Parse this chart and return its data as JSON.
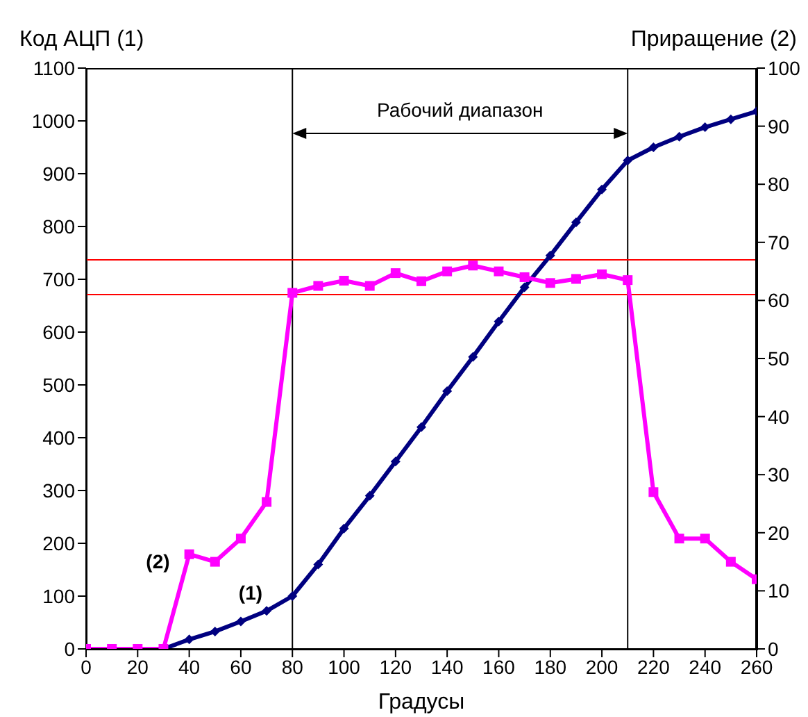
{
  "chart_data": {
    "type": "line",
    "xlabel": "Градусы",
    "ylabel": "Код АЦП (1)",
    "y2label": "Приращение (2)",
    "x": [
      0,
      10,
      20,
      30,
      40,
      50,
      60,
      70,
      80,
      90,
      100,
      110,
      120,
      130,
      140,
      150,
      160,
      170,
      180,
      190,
      200,
      210,
      220,
      230,
      240,
      250,
      260
    ],
    "series": [
      {
        "name": "(1)",
        "color": "#000080",
        "marker": "diamond",
        "values": [
          null,
          null,
          null,
          0,
          18,
          33,
          52,
          72,
          100,
          160,
          228,
          290,
          355,
          420,
          488,
          553,
          620,
          685,
          745,
          808,
          870,
          925,
          950,
          970,
          988,
          1003,
          1018
        ]
      },
      {
        "name": "(2)",
        "color": "#ff00ff",
        "marker": "square",
        "axis": "y2",
        "values": [
          0,
          0,
          0,
          0,
          16.3,
          15,
          19,
          25.3,
          61.3,
          62.5,
          63.4,
          62.5,
          64.7,
          63.3,
          65,
          66,
          65,
          64,
          63,
          63.7,
          64.5,
          63.5,
          27,
          19,
          19,
          15,
          12
        ]
      }
    ],
    "xlim": [
      0,
      260
    ],
    "xticks": [
      0,
      20,
      40,
      60,
      80,
      100,
      120,
      140,
      160,
      180,
      200,
      220,
      240,
      260
    ],
    "ylim": [
      0,
      1100
    ],
    "yticks": [
      0,
      100,
      200,
      300,
      400,
      500,
      600,
      700,
      800,
      900,
      1000,
      1100
    ],
    "y2lim": [
      0,
      100
    ],
    "y2ticks": [
      0,
      10,
      20,
      30,
      40,
      50,
      60,
      70,
      80,
      90,
      100
    ],
    "ref_lines": [
      {
        "axis": "x",
        "value": 80,
        "color": "#000000"
      },
      {
        "axis": "x",
        "value": 210,
        "color": "#000000"
      },
      {
        "axis": "y2",
        "value": 67,
        "color": "#ff0000"
      },
      {
        "axis": "y2",
        "value": 61,
        "color": "#ff0000"
      }
    ],
    "annotations": [
      "Рабочий диапазон"
    ],
    "grid": false,
    "legend": false,
    "line_style": "solid"
  }
}
